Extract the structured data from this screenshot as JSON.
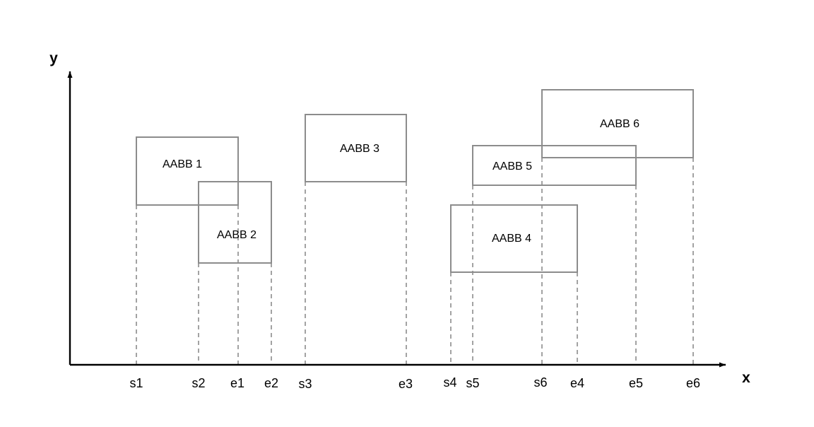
{
  "axes": {
    "x_label": "x",
    "y_label": "y"
  },
  "boxes": [
    {
      "label": "AABB 1",
      "start": "s1",
      "end": "e1"
    },
    {
      "label": "AABB 2",
      "start": "s2",
      "end": "e2"
    },
    {
      "label": "AABB 3",
      "start": "s3",
      "end": "e3"
    },
    {
      "label": "AABB 4",
      "start": "s4",
      "end": "e4"
    },
    {
      "label": "AABB 5",
      "start": "s5",
      "end": "e5"
    },
    {
      "label": "AABB 6",
      "start": "s6",
      "end": "e6"
    }
  ],
  "x_markers": [
    "s1",
    "s2",
    "e1",
    "e2",
    "s3",
    "e3",
    "s4",
    "s5",
    "s6",
    "e4",
    "e5",
    "e6"
  ]
}
